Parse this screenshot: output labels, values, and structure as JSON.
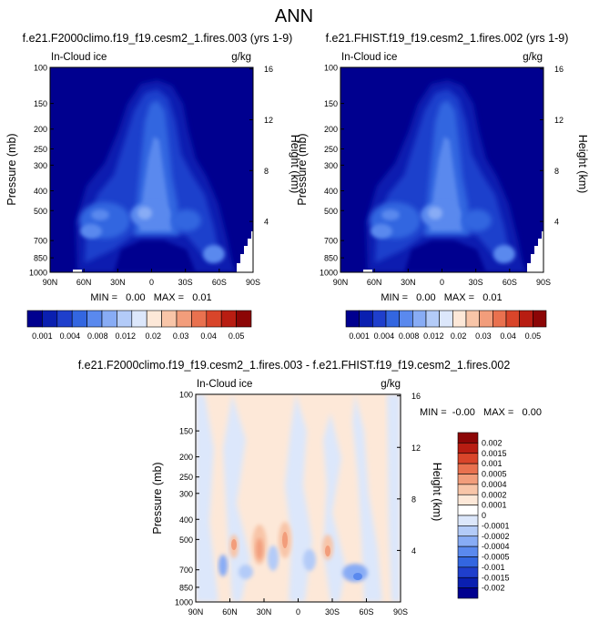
{
  "figure_title": "ANN",
  "colors": {
    "background_ice": "#00008f",
    "diff_neutral": "#ddeeff"
  },
  "chart_data": [
    {
      "type": "heatmap",
      "id": "panel1",
      "title": "f.e21.F2000climo.f19_f19.cesm2_1.fires.003 (yrs 1-9)",
      "field_label": "In-Cloud ice",
      "units": "g/kg",
      "ylabel": "Pressure (mb)",
      "ylabel_right": "Height (km)",
      "x_ticks": [
        "90N",
        "60N",
        "30N",
        "0",
        "30S",
        "60S",
        "90S"
      ],
      "x_values": [
        90,
        60,
        30,
        0,
        -30,
        -60,
        -90
      ],
      "y_ticks": [
        "100",
        "150",
        "200",
        "250",
        "300",
        "400",
        "500",
        "700",
        "850",
        "1000"
      ],
      "y_values": [
        100,
        150,
        200,
        250,
        300,
        400,
        500,
        700,
        850,
        1000
      ],
      "y2_ticks": [
        "16",
        "12",
        "8",
        "4"
      ],
      "y2_values": [
        16,
        12,
        8,
        4
      ],
      "ylim": [
        1000,
        100
      ],
      "stats": "MIN =   0.00   MAX =   0.01",
      "colorbar": {
        "orientation": "horizontal",
        "colors": [
          "#00008f",
          "#0a1fb0",
          "#1f3fcc",
          "#3366e0",
          "#5a89ee",
          "#88acf5",
          "#b3cbf8",
          "#dce7fb",
          "#fde8d8",
          "#f8c5a8",
          "#f29d7b",
          "#e9714f",
          "#d9452a",
          "#b81d12",
          "#8c0606"
        ],
        "labels": [
          "0.001",
          "0.004",
          "0.008",
          "0.012",
          "0.02",
          "0.03",
          "0.04",
          "0.05"
        ]
      }
    },
    {
      "type": "heatmap",
      "id": "panel2",
      "title": "f.e21.FHIST.f19_f19.cesm2_1.fires.002 (yrs 1-9)",
      "field_label": "In-Cloud ice",
      "units": "g/kg",
      "ylabel": "Pressure (mb)",
      "ylabel_right": "Height (km)",
      "x_ticks": [
        "90N",
        "60N",
        "30N",
        "0",
        "30S",
        "60S",
        "90S"
      ],
      "x_values": [
        90,
        60,
        30,
        0,
        -30,
        -60,
        -90
      ],
      "y_ticks": [
        "100",
        "150",
        "200",
        "250",
        "300",
        "400",
        "500",
        "700",
        "850",
        "1000"
      ],
      "y_values": [
        100,
        150,
        200,
        250,
        300,
        400,
        500,
        700,
        850,
        1000
      ],
      "y2_ticks": [
        "16",
        "12",
        "8",
        "4"
      ],
      "y2_values": [
        16,
        12,
        8,
        4
      ],
      "ylim": [
        1000,
        100
      ],
      "stats": "MIN =   0.00   MAX =   0.01",
      "colorbar": {
        "orientation": "horizontal",
        "colors": [
          "#00008f",
          "#0a1fb0",
          "#1f3fcc",
          "#3366e0",
          "#5a89ee",
          "#88acf5",
          "#b3cbf8",
          "#dce7fb",
          "#fde8d8",
          "#f8c5a8",
          "#f29d7b",
          "#e9714f",
          "#d9452a",
          "#b81d12",
          "#8c0606"
        ],
        "labels": [
          "0.001",
          "0.004",
          "0.008",
          "0.012",
          "0.02",
          "0.03",
          "0.04",
          "0.05"
        ]
      }
    },
    {
      "type": "heatmap",
      "id": "panel3",
      "title": "f.e21.F2000climo.f19_f19.cesm2_1.fires.003 - f.e21.FHIST.f19_f19.cesm2_1.fires.002",
      "field_label": "In-Cloud ice",
      "units": "g/kg",
      "ylabel": "Pressure (mb)",
      "ylabel_right": "Height (km)",
      "x_ticks": [
        "90N",
        "60N",
        "30N",
        "0",
        "30S",
        "60S",
        "90S"
      ],
      "x_values": [
        90,
        60,
        30,
        0,
        -30,
        -60,
        -90
      ],
      "y_ticks": [
        "100",
        "150",
        "200",
        "250",
        "300",
        "400",
        "500",
        "700",
        "850",
        "1000"
      ],
      "y_values": [
        100,
        150,
        200,
        250,
        300,
        400,
        500,
        700,
        850,
        1000
      ],
      "y2_ticks": [
        "16",
        "12",
        "8",
        "4"
      ],
      "y2_values": [
        16,
        12,
        8,
        4
      ],
      "ylim": [
        1000,
        100
      ],
      "stats": "MIN =  -0.00   MAX =   0.00",
      "colorbar": {
        "orientation": "vertical",
        "colors": [
          "#8c0606",
          "#b81d12",
          "#d9452a",
          "#e9714f",
          "#f29d7b",
          "#f8c5a8",
          "#fde8d8",
          "#ffffff",
          "#dce7fb",
          "#b3cbf8",
          "#88acf5",
          "#5a89ee",
          "#3366e0",
          "#1f3fcc",
          "#0a1fb0",
          "#00008f"
        ],
        "labels": [
          "0.002",
          "0.0015",
          "0.001",
          "0.0005",
          "0.0004",
          "0.0002",
          "0.0001",
          "0",
          "-0.0001",
          "-0.0002",
          "-0.0004",
          "-0.0005",
          "-0.001",
          "-0.0015",
          "-0.002"
        ]
      }
    }
  ]
}
